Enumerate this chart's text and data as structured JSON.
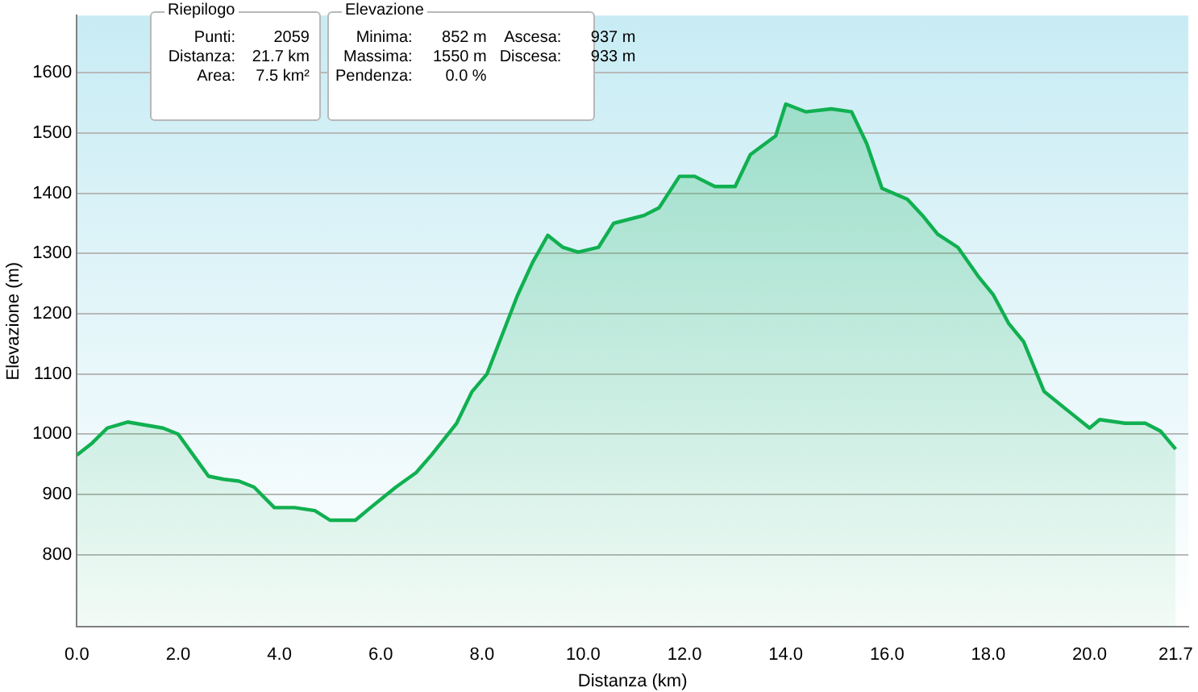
{
  "chart_data": {
    "type": "area",
    "xlabel": "Distanza (km)",
    "ylabel": "Elevazione (m)",
    "annotations": [
      "Riepilogo",
      "Punti: 2059",
      "Distanza: 21.7 km",
      "Area: 7.5 km²",
      "Elevazione",
      "Minima: 852 m",
      "Massima: 1550 m",
      "Pendenza: 0.0 %",
      "Ascesa: 937 m",
      "Discesa: 933 m"
    ],
    "x": [
      0,
      0.3,
      0.6,
      1.0,
      1.7,
      2.0,
      2.3,
      2.6,
      2.9,
      3.2,
      3.5,
      3.9,
      4.3,
      4.7,
      5.0,
      5.5,
      5.8,
      6.3,
      6.7,
      7.0,
      7.5,
      7.8,
      8.1,
      8.4,
      8.7,
      9.0,
      9.3,
      9.6,
      9.9,
      10.3,
      10.6,
      11.2,
      11.5,
      11.9,
      12.2,
      12.6,
      13.0,
      13.3,
      13.8,
      14.0,
      14.4,
      14.9,
      15.3,
      15.6,
      15.9,
      16.4,
      16.7,
      17.0,
      17.4,
      17.8,
      18.1,
      18.4,
      18.7,
      19.1,
      19.6,
      20.0,
      20.2,
      20.7,
      21.1,
      21.4,
      21.7
    ],
    "series": [
      {
        "color": "#10b050",
        "values": [
          965,
          985,
          1010,
          1020,
          1010,
          1000,
          965,
          930,
          925,
          922,
          912,
          878,
          878,
          873,
          857,
          857,
          878,
          912,
          936,
          965,
          1018,
          1070,
          1100,
          1165,
          1230,
          1285,
          1330,
          1310,
          1302,
          1310,
          1350,
          1363,
          1376,
          1428,
          1428,
          1411,
          1411,
          1464,
          1495,
          1548,
          1535,
          1540,
          1535,
          1482,
          1408,
          1390,
          1363,
          1332,
          1310,
          1262,
          1231,
          1184,
          1153,
          1071,
          1037,
          1010,
          1024,
          1018,
          1018,
          1005,
          975
        ]
      }
    ],
    "xlim": [
      0,
      21.95
    ],
    "xticks": [
      {
        "value": 0,
        "label": "0.0"
      },
      {
        "value": 2,
        "label": "2.0"
      },
      {
        "value": 4,
        "label": "4.0"
      },
      {
        "value": 6,
        "label": "6.0"
      },
      {
        "value": 8,
        "label": "8.0"
      },
      {
        "value": 10,
        "label": "10.0"
      },
      {
        "value": 12,
        "label": "12.0"
      },
      {
        "value": 14,
        "label": "14.0"
      },
      {
        "value": 16,
        "label": "16.0"
      },
      {
        "value": 18,
        "label": "18.0"
      },
      {
        "value": 20,
        "label": "20.0"
      },
      {
        "value": 21.7,
        "label": "21.7"
      }
    ],
    "ylim": [
      680,
      1695
    ],
    "yticks": [
      800,
      900,
      1000,
      1100,
      1200,
      1300,
      1400,
      1500,
      1600
    ],
    "grid": "y",
    "legend": false
  }
}
